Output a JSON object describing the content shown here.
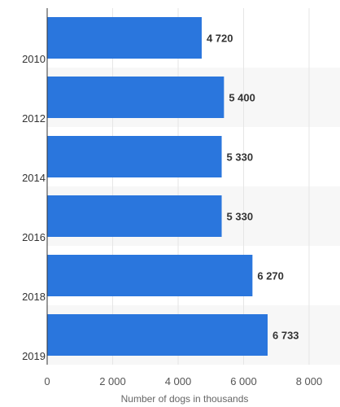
{
  "chart_data": {
    "type": "bar",
    "orientation": "horizontal",
    "title": "",
    "xlabel": "Number of dogs in thousands",
    "ylabel": "",
    "categories": [
      "2010",
      "2012",
      "2014",
      "2016",
      "2018",
      "2019"
    ],
    "values": [
      4720,
      5400,
      5330,
      5330,
      6270,
      6733
    ],
    "value_labels": [
      "4 720",
      "5 400",
      "5 330",
      "5 330",
      "6 270",
      "6 733"
    ],
    "xlim": [
      0,
      8000
    ],
    "xticks": [
      0,
      2000,
      4000,
      6000,
      8000
    ],
    "xtick_labels": [
      "0",
      "2 000",
      "4 000",
      "6 000",
      "8 000"
    ],
    "grid": true,
    "alternating_row_background": true,
    "bar_color": "#2a76dd",
    "row_stripe_color": "#f7f7f7",
    "grid_color": "#e6e6e6"
  }
}
